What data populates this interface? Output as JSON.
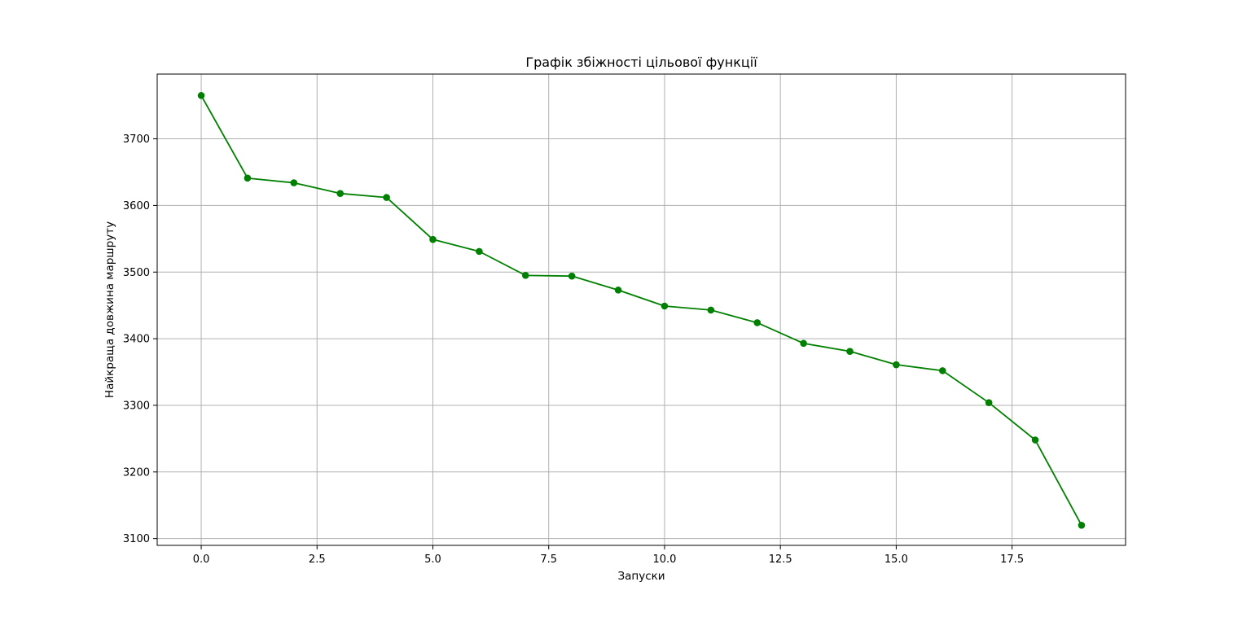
{
  "chart_data": {
    "type": "line",
    "title": "Графік збіжності цільової функції",
    "xlabel": "Запуски",
    "ylabel": "Найкраща довжина маршруту",
    "xlim": [
      -0.95,
      19.95
    ],
    "ylim": [
      3089.8,
      3797.2
    ],
    "x_ticks": [
      0.0,
      2.5,
      5.0,
      7.5,
      10.0,
      12.5,
      15.0,
      17.5
    ],
    "x_tick_labels": [
      "0.0",
      "2.5",
      "5.0",
      "7.5",
      "10.0",
      "12.5",
      "15.0",
      "17.5"
    ],
    "y_ticks": [
      3100,
      3200,
      3300,
      3400,
      3500,
      3600,
      3700
    ],
    "y_tick_labels": [
      "3100",
      "3200",
      "3300",
      "3400",
      "3500",
      "3600",
      "3700"
    ],
    "grid": true,
    "legend": "none",
    "color": "#008000",
    "marker": "circle",
    "series": [
      {
        "x": [
          0,
          1,
          2,
          3,
          4,
          5,
          6,
          7,
          8,
          9,
          10,
          11,
          12,
          13,
          14,
          15,
          16,
          17,
          18,
          19
        ],
        "values": [
          3765,
          3641,
          3634,
          3618,
          3612,
          3549,
          3531,
          3495,
          3494,
          3473,
          3449,
          3443,
          3424,
          3393,
          3381,
          3361,
          3352,
          3304,
          3248,
          3120
        ]
      }
    ]
  }
}
